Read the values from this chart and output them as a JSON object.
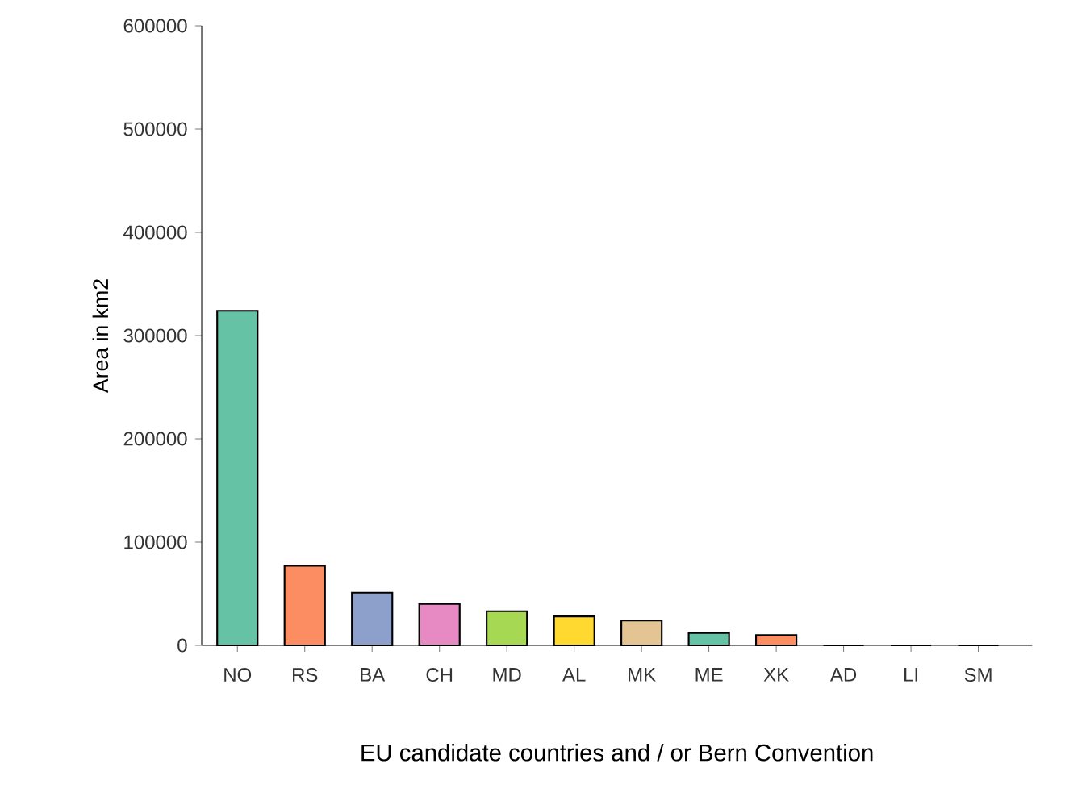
{
  "chart_data": {
    "type": "bar",
    "xlabel": "EU candidate countries and / or Bern Convention",
    "ylabel": "Area in km2",
    "categories": [
      "NO",
      "RS",
      "BA",
      "CH",
      "MD",
      "AL",
      "MK",
      "ME",
      "XK",
      "AD",
      "LI",
      "SM"
    ],
    "values": [
      324000,
      77000,
      51000,
      40000,
      33000,
      28000,
      24000,
      12000,
      10000,
      0,
      0,
      0
    ],
    "colors": [
      "#66c2a5",
      "#fc8d62",
      "#8da0cb",
      "#e78ac3",
      "#a6d854",
      "#ffd92f",
      "#e5c494",
      "#66c2a5",
      "#fc8d62",
      "#8da0cb",
      "#e78ac3",
      "#a6d854"
    ],
    "ylim": [
      0,
      600000
    ],
    "yticks": [
      0,
      100000,
      200000,
      300000,
      400000,
      500000,
      600000
    ],
    "grid": false
  }
}
